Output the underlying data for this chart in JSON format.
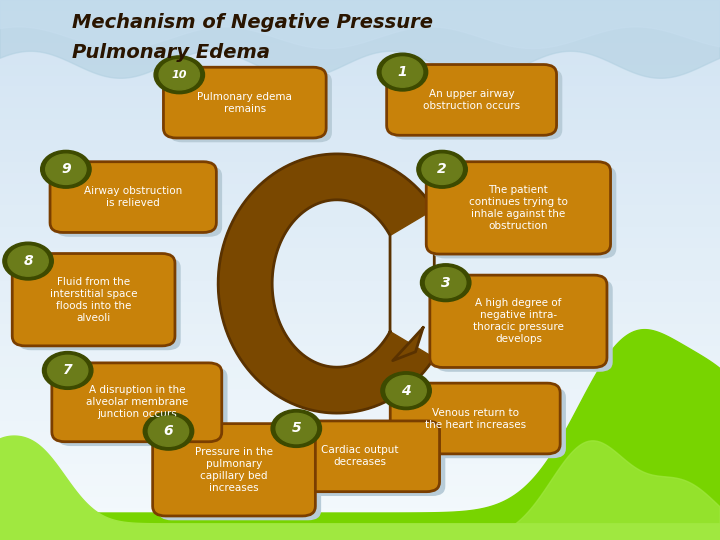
{
  "title_line1": "Mechanism of Negative Pressure",
  "title_line2": "Pulmonary Edema",
  "title_color": "#2a1500",
  "bg_color": "#ddeaf5",
  "box_fill": "#c8820a",
  "box_edge": "#7a3e00",
  "box_shadow": "#b8ccd8",
  "num_bg_fill": "#6b7c1a",
  "num_bg_edge": "#3d4a00",
  "num_color": "#ffffff",
  "text_color": "#ffffff",
  "arrow_fill": "#7a4800",
  "arrow_edge": "#5a3200",
  "grass_right_light": "#7dd400",
  "grass_right_mid": "#5ab800",
  "grass_right_dark": "#3a9000",
  "grass_left_color": "#aee040",
  "steps": [
    {
      "num": "1",
      "text": "An upper airway\nobstruction occurs",
      "bx": 0.655,
      "by": 0.815,
      "bw": 0.2,
      "bh": 0.095
    },
    {
      "num": "2",
      "text": "The patient\ncontinues trying to\ninhale against the\nobstruction",
      "bx": 0.72,
      "by": 0.615,
      "bw": 0.22,
      "bh": 0.135
    },
    {
      "num": "3",
      "text": "A high degree of\nnegative intra-\nthoracic pressure\ndevelops",
      "bx": 0.72,
      "by": 0.405,
      "bw": 0.21,
      "bh": 0.135
    },
    {
      "num": "4",
      "text": "Venous return to\nthe heart increases",
      "bx": 0.66,
      "by": 0.225,
      "bw": 0.2,
      "bh": 0.095
    },
    {
      "num": "5",
      "text": "Cardiac output\ndecreases",
      "bx": 0.5,
      "by": 0.155,
      "bw": 0.185,
      "bh": 0.095
    },
    {
      "num": "6",
      "text": "Pressure in the\npulmonary\ncapillary bed\nincreases",
      "bx": 0.325,
      "by": 0.13,
      "bw": 0.19,
      "bh": 0.135
    },
    {
      "num": "7",
      "text": "A disruption in the\nalveolar membrane\njunction occurs",
      "bx": 0.19,
      "by": 0.255,
      "bw": 0.2,
      "bh": 0.11
    },
    {
      "num": "8",
      "text": "Fluid from the\ninterstitial space\nfloods into the\nalveoli",
      "bx": 0.13,
      "by": 0.445,
      "bw": 0.19,
      "bh": 0.135
    },
    {
      "num": "9",
      "text": "Airway obstruction\nis relieved",
      "bx": 0.185,
      "by": 0.635,
      "bw": 0.195,
      "bh": 0.095
    },
    {
      "num": "10",
      "text": "Pulmonary edema\nremains",
      "bx": 0.34,
      "by": 0.81,
      "bw": 0.19,
      "bh": 0.095
    }
  ]
}
